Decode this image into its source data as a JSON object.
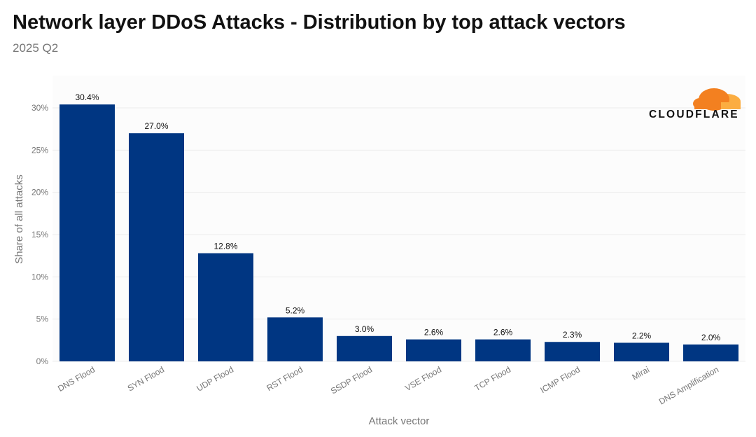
{
  "title": "Network layer DDoS Attacks - Distribution by top attack vectors",
  "subtitle": "2025 Q2",
  "logo": {
    "text": "CLOUDFLARE",
    "colors": [
      "#f38020",
      "#fbad41"
    ]
  },
  "chart_data": {
    "type": "bar",
    "categories": [
      "DNS Flood",
      "SYN Flood",
      "UDP Flood",
      "RST Flood",
      "SSDP Flood",
      "VSE Flood",
      "TCP Flood",
      "ICMP Flood",
      "Mirai",
      "DNS Amplification"
    ],
    "values": [
      30.4,
      27.0,
      12.8,
      5.2,
      3.0,
      2.6,
      2.6,
      2.3,
      2.2,
      2.0
    ],
    "data_labels": [
      "30.4%",
      "27.0%",
      "12.8%",
      "5.2%",
      "3.0%",
      "2.6%",
      "2.6%",
      "2.3%",
      "2.2%",
      "2.0%"
    ],
    "xlabel": "Attack vector",
    "ylabel": "Share of all attacks",
    "ylim": [
      0,
      30
    ],
    "yticks": [
      "0%",
      "5%",
      "10%",
      "15%",
      "20%",
      "25%",
      "30%"
    ],
    "grid": true,
    "bar_color": "#003682"
  }
}
